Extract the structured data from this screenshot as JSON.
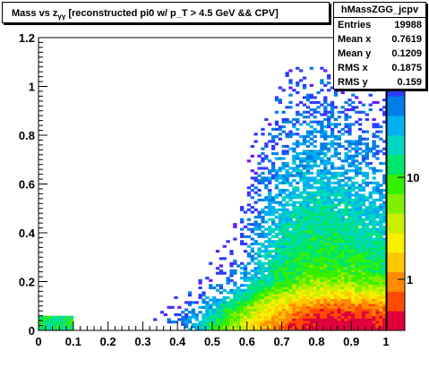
{
  "chart_data": {
    "type": "heatmap",
    "title": "Mass vs z",
    "title_subscript": "γγ",
    "title_suffix": " [reconstructed pi0 w/ p_T > 4.5 GeV && CPV]",
    "x_ticks": [
      "0",
      "0.1",
      "0.2",
      "0.3",
      "0.4",
      "0.5",
      "0.6",
      "0.7",
      "0.8",
      "0.9",
      "1"
    ],
    "y_ticks": [
      "0",
      "0.2",
      "0.4",
      "0.6",
      "0.8",
      "1",
      "1.2"
    ],
    "xlim": [
      0,
      1
    ],
    "ylim": [
      0,
      1.2
    ],
    "zscale": "log",
    "palette_labels": [
      "1",
      "10",
      "10"
    ],
    "palette_colors": [
      "#e0003c",
      "#ff4a00",
      "#ff8c00",
      "#ffc800",
      "#f8f000",
      "#c8f000",
      "#80f000",
      "#34f000",
      "#00e66a",
      "#00d6c0",
      "#00b0f0",
      "#007ee6",
      "#2e3cff",
      "#6a18ff",
      "#9c00f0"
    ],
    "stats": {
      "name": "hMassZGG_jcpv",
      "rows": [
        {
          "label": "Entries",
          "value": "19988"
        },
        {
          "label": "Mean x",
          "value": "0.7619"
        },
        {
          "label": "Mean y",
          "value": "0.1209"
        },
        {
          "label": "RMS x",
          "value": "0.1875"
        },
        {
          "label": "RMS y",
          "value": "0.159"
        }
      ]
    }
  }
}
